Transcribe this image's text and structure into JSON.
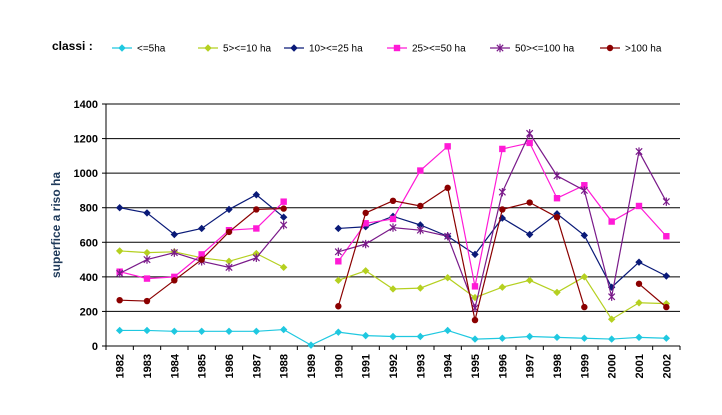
{
  "chart_data": {
    "type": "line",
    "legend_title": "classi :",
    "ylabel": "superfice a riso ha",
    "xlabel": "",
    "ylim": [
      0,
      1400
    ],
    "yticks": [
      0,
      200,
      400,
      600,
      800,
      1000,
      1200,
      1400
    ],
    "grid": "horizontal",
    "legend_placement": "top",
    "x": [
      "1982",
      "1983",
      "1984",
      "1985",
      "1986",
      "1987",
      "1988",
      "1989",
      "1990",
      "1991",
      "1992",
      "1993",
      "1994",
      "1995",
      "1996",
      "1997",
      "1998",
      "1999",
      "2000",
      "2001",
      "2002"
    ],
    "series": [
      {
        "name": "<=5ha",
        "color": "#1fc8e0",
        "marker": "diamond",
        "values": [
          90,
          90,
          85,
          85,
          85,
          85,
          95,
          5,
          80,
          60,
          55,
          55,
          90,
          40,
          45,
          55,
          50,
          45,
          40,
          50,
          45
        ]
      },
      {
        "name": "5><=10 ha",
        "color": "#b5d020",
        "marker": "diamond",
        "values": [
          550,
          540,
          545,
          510,
          490,
          535,
          455,
          null,
          380,
          435,
          330,
          335,
          395,
          280,
          340,
          380,
          310,
          400,
          155,
          250,
          245
        ]
      },
      {
        "name": "10><=25 ha",
        "color": "#0a1a78",
        "marker": "diamond",
        "values": [
          800,
          770,
          645,
          680,
          790,
          875,
          745,
          null,
          680,
          690,
          750,
          700,
          635,
          530,
          740,
          645,
          765,
          640,
          340,
          485,
          405
        ]
      },
      {
        "name": "25><=50 ha",
        "color": "#ff1ad6",
        "marker": "square",
        "values": [
          430,
          390,
          400,
          530,
          670,
          680,
          835,
          null,
          490,
          710,
          735,
          1015,
          1155,
          345,
          1140,
          1175,
          855,
          930,
          720,
          810,
          635
        ]
      },
      {
        "name": "50><=100 ha",
        "color": "#7a1a8a",
        "marker": "asterisk",
        "values": [
          420,
          500,
          540,
          490,
          455,
          510,
          700,
          null,
          545,
          590,
          685,
          670,
          635,
          220,
          890,
          1230,
          985,
          900,
          285,
          1125,
          835
        ]
      },
      {
        "name": ">100 ha",
        "color": "#8b0000",
        "marker": "circle",
        "values": [
          265,
          260,
          380,
          500,
          660,
          790,
          795,
          null,
          230,
          770,
          840,
          810,
          915,
          150,
          790,
          830,
          745,
          225,
          null,
          360,
          225
        ]
      }
    ]
  }
}
